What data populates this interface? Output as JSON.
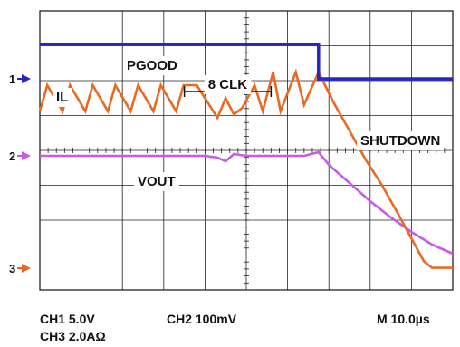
{
  "chart_data": {
    "type": "line",
    "instrument": "oscilloscope",
    "grid": {
      "divisions_x": 10,
      "divisions_y": 8,
      "minor_ticks_per_division": 5
    },
    "time_axis": {
      "unit": "µs",
      "per_division": 10,
      "range": [
        0,
        100
      ]
    },
    "colors": {
      "CH1": "#2525c8",
      "CH2": "#c85be6",
      "CH3": "#e86a22"
    },
    "channels": [
      {
        "id": "CH1",
        "scale_label": "CH1 5.0V",
        "marker": "1"
      },
      {
        "id": "CH2",
        "scale_label": "CH2 100mV",
        "marker": "2"
      },
      {
        "id": "CH3",
        "scale_label": "CH3 2.0AΩ",
        "marker": "3"
      }
    ],
    "timebase_label": "M 10.0µs",
    "series": [
      {
        "name": "PGOOD",
        "channel": "CH1",
        "x": [
          0,
          67.5,
          67.5,
          100
        ],
        "y": [
          5.0,
          5.0,
          0.0,
          0.0
        ]
      },
      {
        "name": "IL",
        "channel": "CH3",
        "shape": "sawtooth",
        "x": [
          0,
          1.8,
          5.5,
          7.3,
          11.0,
          12.8,
          16.5,
          18.3,
          22.0,
          23.8,
          27.5,
          29.3,
          33.0,
          34.8,
          38.0,
          43.0,
          45.0,
          47.0,
          49.0,
          52.0,
          54.0,
          56.5,
          58.3,
          62.0,
          64.0,
          67.5,
          71.0,
          75.0,
          79.0,
          83.0,
          87.0,
          90.0,
          93.0,
          95.0,
          100
        ],
        "y": [
          1.2,
          2.0,
          1.2,
          2.0,
          1.2,
          2.0,
          1.2,
          2.0,
          1.2,
          2.0,
          1.2,
          2.0,
          1.2,
          2.0,
          2.0,
          1.0,
          1.6,
          1.1,
          1.3,
          2.0,
          1.2,
          2.4,
          1.2,
          2.4,
          1.4,
          2.4,
          1.5,
          0.6,
          -0.3,
          -1.1,
          -2.0,
          -2.7,
          -3.4,
          -3.6,
          -3.6
        ]
      },
      {
        "name": "VOUT",
        "channel": "CH2",
        "x": [
          0,
          10,
          20,
          30,
          40,
          43,
          45,
          47,
          50,
          55,
          60,
          64,
          67.5,
          70,
          75,
          80,
          85,
          90,
          95,
          100
        ],
        "y": [
          0.0,
          0.0,
          0.0,
          0.0,
          0.0,
          -0.05,
          -0.15,
          0.05,
          0.0,
          0.0,
          0.0,
          0.0,
          0.1,
          -0.25,
          -0.75,
          -1.25,
          -1.7,
          -2.1,
          -2.45,
          -2.7
        ]
      }
    ],
    "annotations": [
      {
        "text": "PGOOD"
      },
      {
        "text": "IL"
      },
      {
        "text": "8 CLK",
        "span_x": [
          35,
          56
        ]
      },
      {
        "text": "SHUTDOWN"
      },
      {
        "text": "VOUT"
      }
    ]
  }
}
